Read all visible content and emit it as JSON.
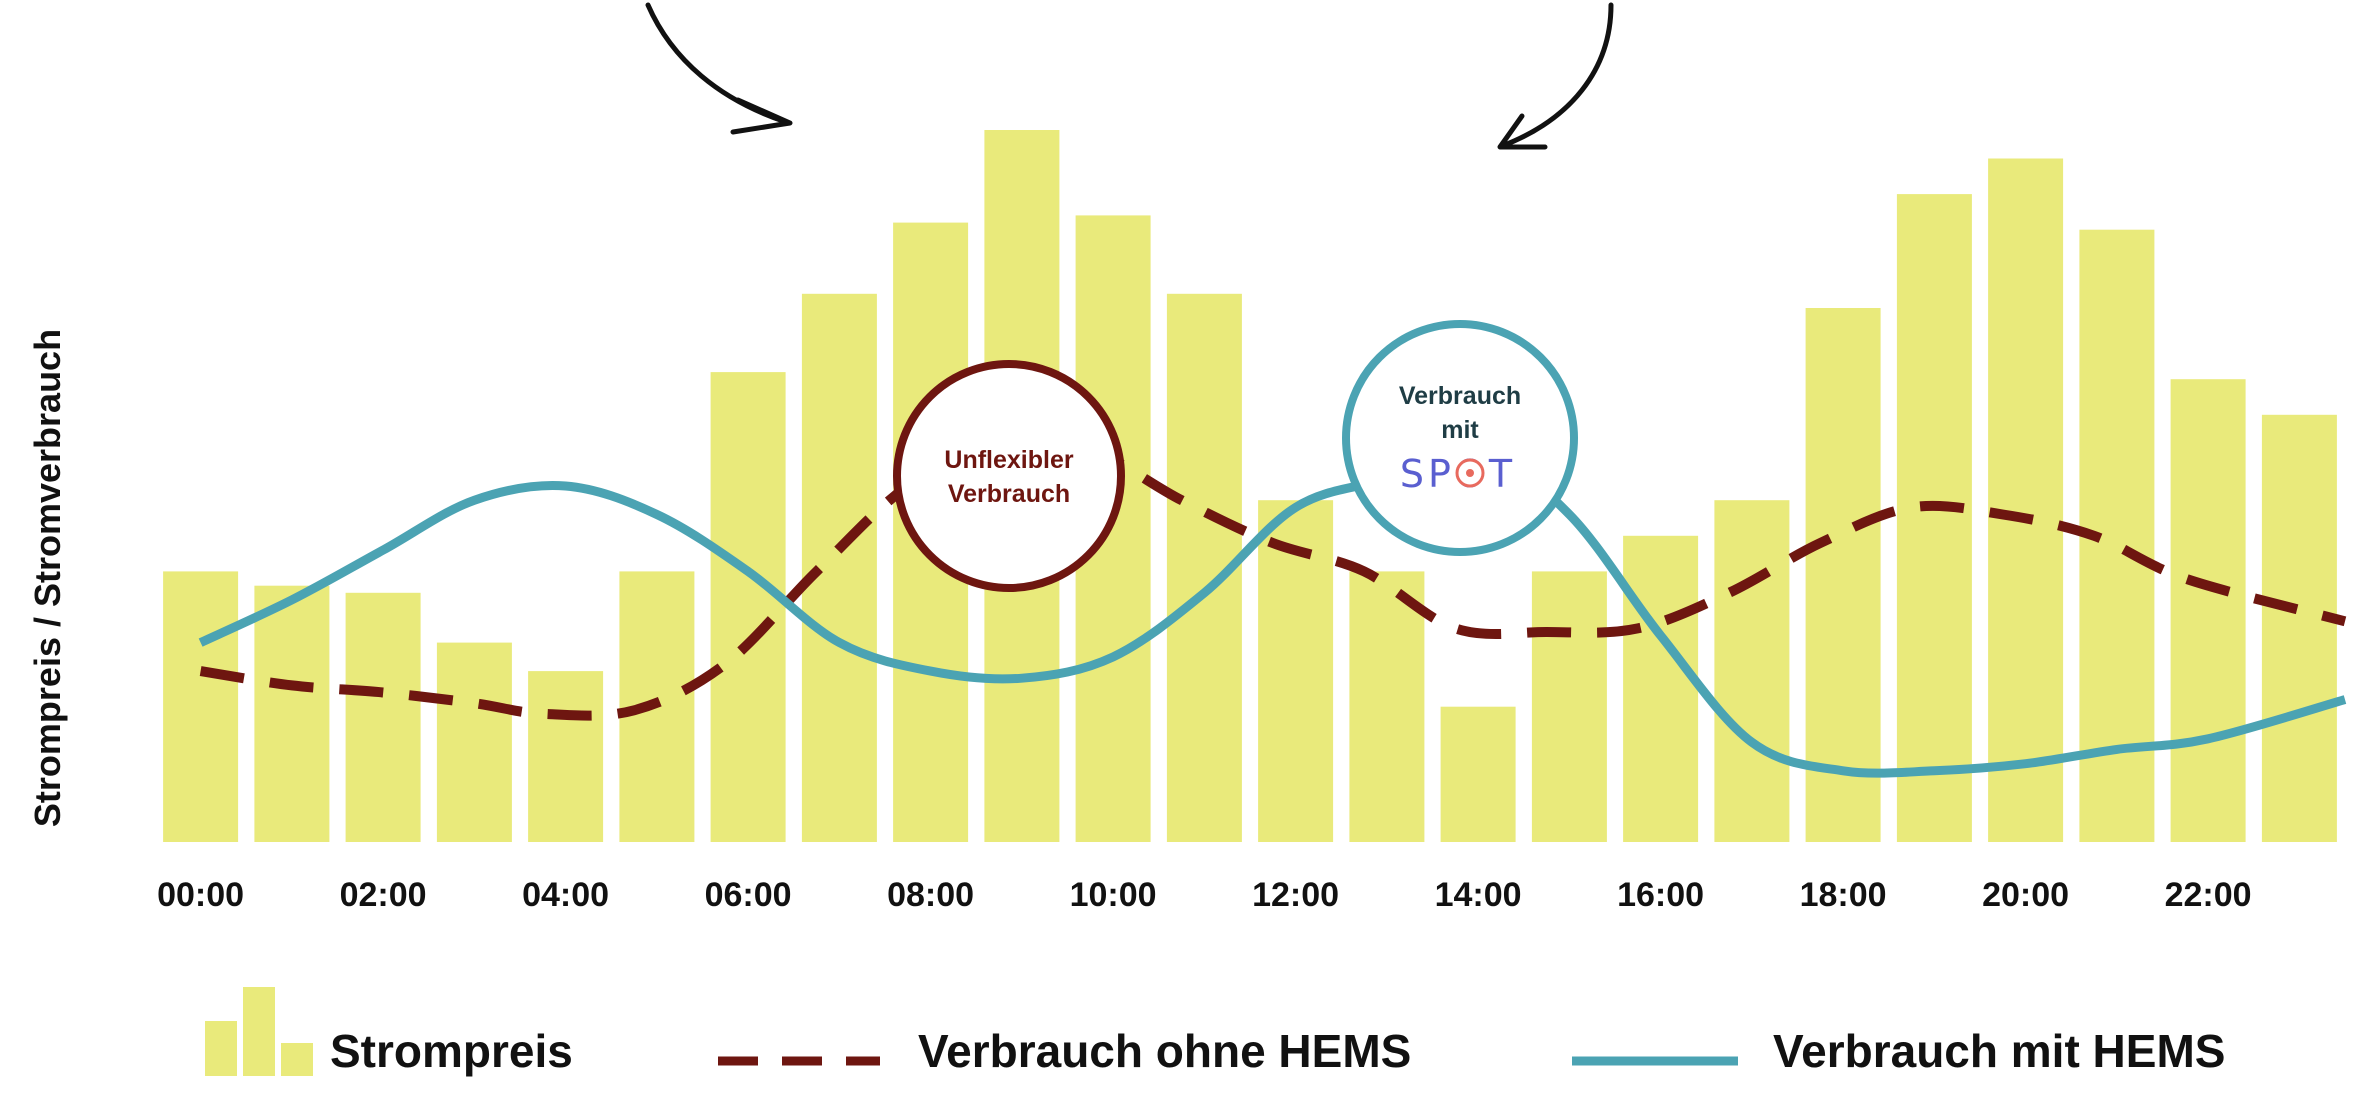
{
  "chart_data": {
    "type": "bar",
    "ylabel": "Strompreis / Stromverbrauch",
    "tick_labels": [
      "00:00",
      "02:00",
      "04:00",
      "06:00",
      "08:00",
      "10:00",
      "12:00",
      "14:00",
      "16:00",
      "18:00",
      "20:00",
      "22:00"
    ],
    "hours": [
      0,
      1,
      2,
      3,
      4,
      5,
      6,
      7,
      8,
      9,
      10,
      11,
      12,
      13,
      14,
      15,
      16,
      17,
      18,
      19,
      20,
      21,
      22,
      23
    ],
    "ylim": [
      0,
      100
    ],
    "grid": false,
    "legend_position": "bottom",
    "series": [
      {
        "name": "Strompreis",
        "type": "bar",
        "color": "#e9ea7b",
        "values": [
          38,
          36,
          35,
          28,
          24,
          38,
          66,
          77,
          87,
          100,
          88,
          77,
          48,
          38,
          19,
          38,
          43,
          48,
          75,
          91,
          96,
          86,
          65,
          60
        ]
      },
      {
        "name": "Verbrauch ohne HEMS",
        "type": "line",
        "style": "dashed",
        "color": "#6e1610",
        "x": [
          0,
          1,
          2,
          3,
          3.75,
          4.75,
          5.75,
          6.75,
          7.75,
          8.75,
          9.75,
          10.75,
          11.75,
          12.75,
          13.75,
          14.75,
          15.75,
          16.75,
          17.75,
          18.75,
          19.75,
          20.75,
          21.75,
          23.5
        ],
        "values": [
          24,
          22,
          21,
          19.5,
          18,
          18.5,
          25,
          38,
          50,
          56,
          55,
          48,
          42,
          38,
          30,
          29.5,
          30,
          35,
          42,
          47,
          46,
          43,
          37,
          31
        ]
      },
      {
        "name": "Verbrauch mit HEMS",
        "type": "line",
        "style": "solid",
        "color": "#4ba3b3",
        "x": [
          0,
          1,
          2,
          3,
          4,
          5,
          6,
          7,
          8,
          9,
          10,
          11,
          12,
          13,
          14,
          15,
          16,
          17,
          18,
          19,
          20,
          21,
          22,
          23.5
        ],
        "values": [
          28,
          34,
          41,
          48,
          50,
          46,
          38,
          28,
          24,
          23,
          26,
          35,
          47,
          51,
          55,
          46,
          29,
          14,
          10,
          10,
          11,
          13,
          14.5,
          20
        ]
      }
    ],
    "annotations": [
      {
        "id": "unflexibel",
        "lines": [
          "Unflexibler",
          "Verbrauch"
        ],
        "color": "#6e1610"
      },
      {
        "id": "spot",
        "lines": [
          "Verbrauch",
          "mit"
        ],
        "logo": "SPOT",
        "color": "#4ba3b3"
      }
    ]
  },
  "colors": {
    "bar": "#e9ea7b",
    "dashed": "#6e1610",
    "solid": "#4ba3b3",
    "text": "#111111",
    "spot_blue": "#5a5fd0",
    "spot_red": "#e86a5e"
  },
  "icons": [
    "curved-arrow-left-icon",
    "curved-arrow-right-icon",
    "bar-legend-icon"
  ]
}
